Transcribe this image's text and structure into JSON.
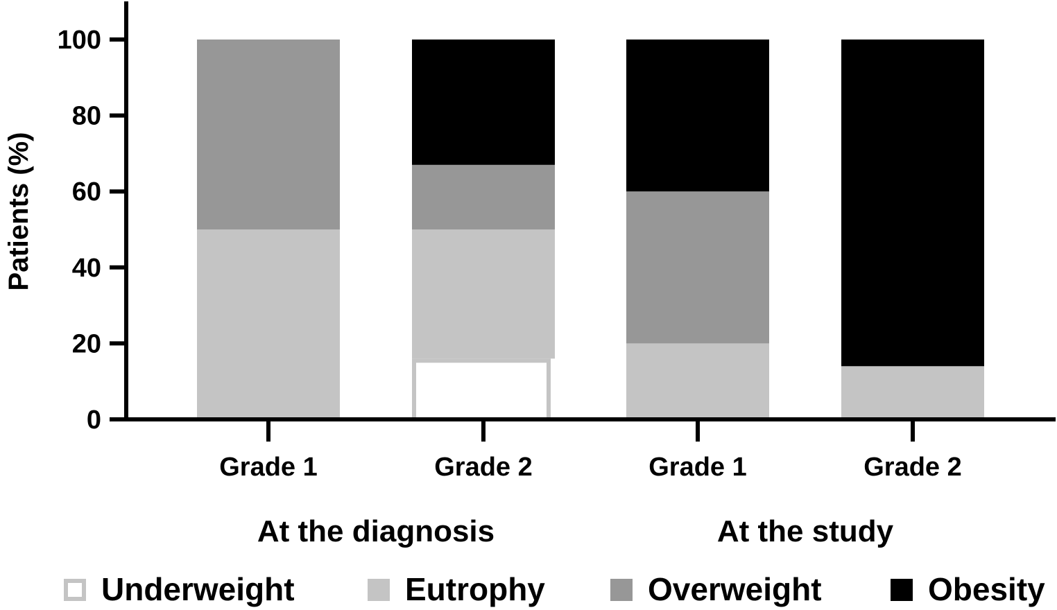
{
  "chart_data": {
    "type": "bar",
    "stacked": true,
    "ylabel": "Patients (%)",
    "ylim": [
      0,
      100
    ],
    "yticks": [
      0,
      20,
      40,
      60,
      80,
      100
    ],
    "categories": [
      "Grade 1",
      "Grade 2",
      "Grade 1",
      "Grade 2"
    ],
    "groups": [
      {
        "label": "At the diagnosis",
        "categories": [
          0,
          1
        ]
      },
      {
        "label": "At the study",
        "categories": [
          2,
          3
        ]
      }
    ],
    "series": [
      {
        "name": "Underweight",
        "color": "#ffffff",
        "border": "#c4c4c4",
        "values": [
          0,
          16,
          0,
          0
        ]
      },
      {
        "name": "Eutrophy",
        "color": "#c4c4c4",
        "values": [
          50,
          34,
          20,
          14
        ]
      },
      {
        "name": "Overweight",
        "color": "#979797",
        "values": [
          50,
          17,
          40,
          0
        ]
      },
      {
        "name": "Obesity",
        "color": "#000000",
        "values": [
          0,
          33,
          40,
          86
        ]
      }
    ],
    "grid": false,
    "legend_position": "bottom"
  }
}
